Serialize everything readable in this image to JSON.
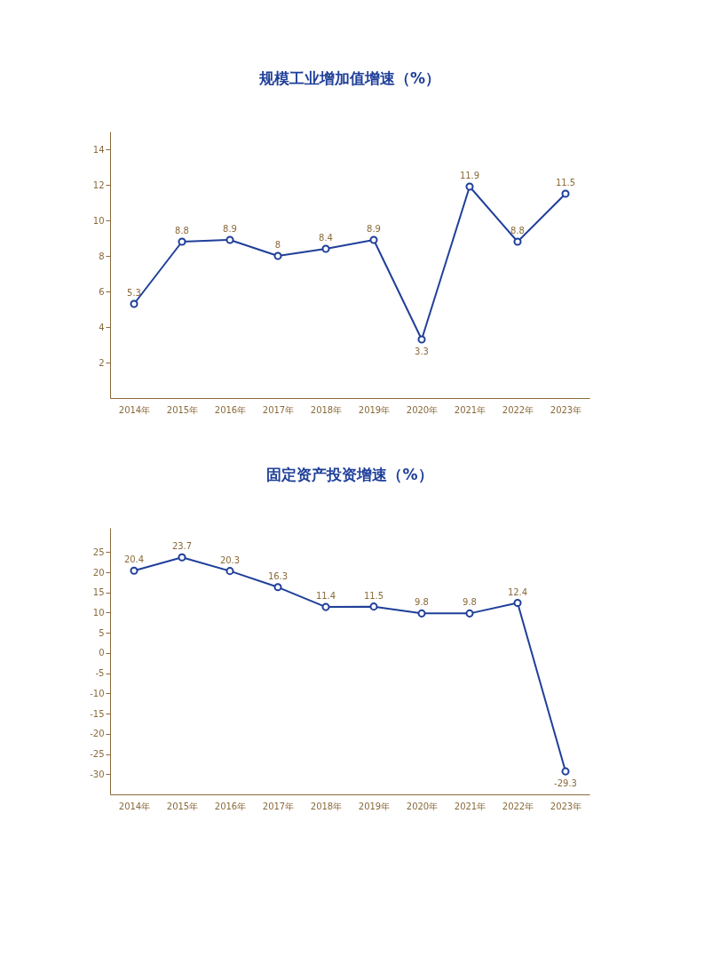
{
  "chart_data": [
    {
      "type": "line",
      "title": "规模工业增加值增速（%）",
      "categories": [
        "2014年",
        "2015年",
        "2016年",
        "2017年",
        "2018年",
        "2019年",
        "2020年",
        "2021年",
        "2022年",
        "2023年"
      ],
      "series": [
        {
          "color": "#1f3f99",
          "values": [
            5.3,
            8.8,
            8.9,
            8,
            8.4,
            8.9,
            3.3,
            11.9,
            8.8,
            11.5
          ]
        }
      ],
      "ylim": [
        0,
        15
      ],
      "yticks": [
        2,
        4,
        6,
        8,
        10,
        12,
        14
      ],
      "grid": false,
      "legend": false,
      "marker": "circle",
      "line_style": "solid",
      "data_labels": true
    },
    {
      "type": "line",
      "title": "固定资产投资增速（%）",
      "categories": [
        "2014年",
        "2015年",
        "2016年",
        "2017年",
        "2018年",
        "2019年",
        "2020年",
        "2021年",
        "2022年",
        "2023年"
      ],
      "series": [
        {
          "color": "#1f3f99",
          "values": [
            20.4,
            23.7,
            20.3,
            16.3,
            11.4,
            11.5,
            9.8,
            9.8,
            12.4,
            -29.3
          ]
        }
      ],
      "ylim": [
        -35,
        31
      ],
      "yticks": [
        -30,
        -25,
        -20,
        -15,
        -10,
        -5,
        0,
        5,
        10,
        15,
        20,
        25
      ],
      "grid": false,
      "legend": false,
      "marker": "circle",
      "line_style": "solid",
      "data_labels": true
    }
  ]
}
